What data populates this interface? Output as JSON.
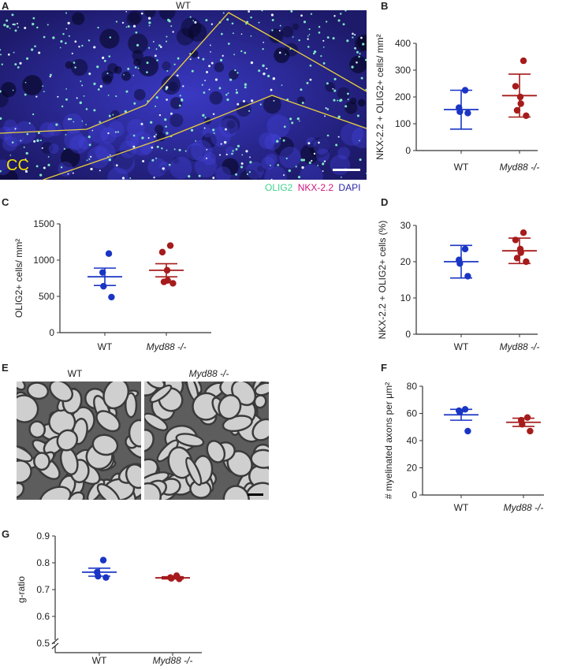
{
  "colors": {
    "wt": "#1a35c4",
    "myd88": "#a61b1b",
    "olig2": "#3fd28c",
    "nkx": "#d0157f",
    "dapi": "#2a28a6",
    "cc_label": "#f2e000"
  },
  "panel_a": {
    "letter": "A",
    "title": "WT",
    "region_label": "CC",
    "legend": {
      "olig2": "OLIG2",
      "nkx": "NKX-2.2",
      "dapi": "DAPI"
    }
  },
  "panel_e": {
    "letter": "E",
    "title_wt": "WT",
    "title_ko": "Myd88 -/-"
  },
  "chart_data": [
    {
      "id": "B",
      "letter": "B",
      "type": "scatter",
      "categories": [
        "WT",
        "Myd88 -/-"
      ],
      "ylabel": "NKX-2.2 + OLIG2+ cells/ mm²",
      "ylim": [
        0,
        400
      ],
      "yticks": [
        "0",
        "100",
        "200",
        "300",
        "400"
      ],
      "series": [
        {
          "name": "WT",
          "points": [
            225,
            160,
            145,
            140
          ],
          "mean": 153,
          "err_low": 80,
          "err_high": 225
        },
        {
          "name": "Myd88 -/-",
          "points": [
            335,
            240,
            200,
            175,
            150,
            130
          ],
          "mean": 205,
          "err_low": 125,
          "err_high": 285
        }
      ]
    },
    {
      "id": "C",
      "letter": "C",
      "type": "scatter",
      "categories": [
        "WT",
        "Myd88 -/-"
      ],
      "ylabel": "OLIG2+ cells/ mm²",
      "ylim": [
        0,
        1500
      ],
      "yticks": [
        "0",
        "500",
        "1000",
        "1500"
      ],
      "series": [
        {
          "name": "WT",
          "points": [
            1090,
            830,
            640,
            490
          ],
          "mean": 770,
          "err_low": 650,
          "err_high": 890
        },
        {
          "name": "Myd88 -/-",
          "points": [
            1200,
            1110,
            860,
            720,
            700,
            680
          ],
          "mean": 860,
          "err_low": 770,
          "err_high": 950
        }
      ]
    },
    {
      "id": "D",
      "letter": "D",
      "type": "scatter",
      "categories": [
        "WT",
        "Myd88 -/-"
      ],
      "ylabel": "NKX-2.2 + OLIG2+ cells (%)",
      "ylim": [
        0,
        30
      ],
      "yticks": [
        "0",
        "10",
        "20",
        "30"
      ],
      "series": [
        {
          "name": "WT",
          "points": [
            23.5,
            20.5,
            19.5,
            16
          ],
          "mean": 20,
          "err_low": 15.5,
          "err_high": 24.5
        },
        {
          "name": "Myd88 -/-",
          "points": [
            28,
            26,
            23.5,
            22.5,
            21,
            20
          ],
          "mean": 23,
          "err_low": 19.5,
          "err_high": 26.5
        }
      ]
    },
    {
      "id": "F",
      "letter": "F",
      "type": "scatter",
      "categories": [
        "WT",
        "Myd88 -/-"
      ],
      "ylabel": "# myelinated axons per μm²",
      "ylim": [
        0,
        80
      ],
      "yticks": [
        "0",
        "20",
        "40",
        "60",
        "80"
      ],
      "series": [
        {
          "name": "WT",
          "points": [
            63,
            62,
            61,
            47
          ],
          "mean": 59,
          "err_low": 55,
          "err_high": 63
        },
        {
          "name": "Myd88 -/-",
          "points": [
            57,
            55,
            52,
            47
          ],
          "mean": 53.5,
          "err_low": 50.5,
          "err_high": 56.5
        }
      ]
    },
    {
      "id": "G",
      "letter": "G",
      "type": "scatter",
      "categories": [
        "WT",
        "Myd88 -/-"
      ],
      "ylabel": "g-ratio",
      "ylim": [
        0.5,
        0.9
      ],
      "yticks": [
        "0.5",
        "0.6",
        "0.7",
        "0.8",
        "0.9"
      ],
      "axis_break": true,
      "series": [
        {
          "name": "WT",
          "points": [
            0.81,
            0.765,
            0.75,
            0.745
          ],
          "mean": 0.765,
          "err_low": 0.75,
          "err_high": 0.78
        },
        {
          "name": "Myd88 -/-",
          "points": [
            0.752,
            0.745,
            0.742,
            0.74
          ],
          "mean": 0.744,
          "err_low": 0.74,
          "err_high": 0.748
        }
      ]
    }
  ]
}
